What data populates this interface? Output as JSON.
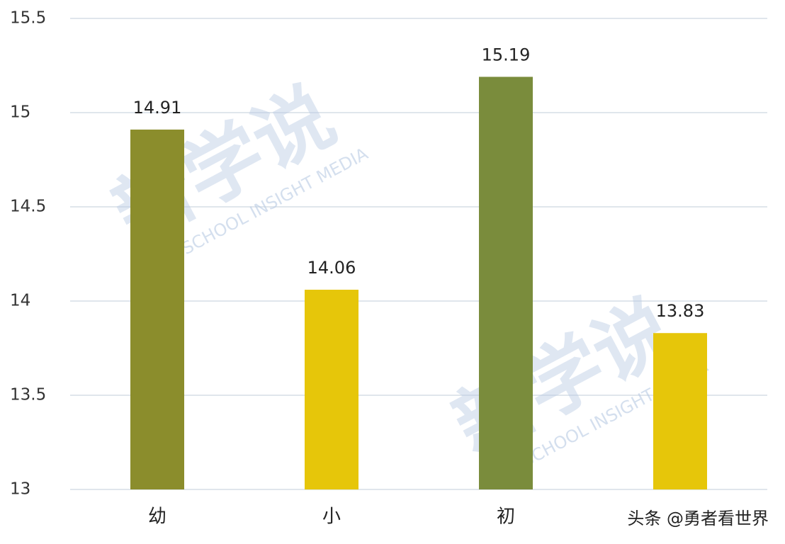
{
  "chart_data": {
    "type": "bar",
    "categories": [
      "幼",
      "小",
      "初",
      null
    ],
    "values": [
      14.91,
      14.06,
      15.19,
      13.83
    ],
    "colors": [
      "#8b8d2c",
      "#e6c60a",
      "#7a8c3c",
      "#e6c60a"
    ],
    "ylim": [
      13,
      15.5
    ],
    "yticks": [
      13,
      13.5,
      14,
      14.5,
      15,
      15.5
    ],
    "grid": true,
    "watermarks": [
      "新学说",
      "NEW SCHOOL INSIGHT MEDIA",
      "新学说",
      "NEW SCHOOL INSIGHT MEDIA"
    ],
    "credit": "头条 @勇者看世界"
  }
}
